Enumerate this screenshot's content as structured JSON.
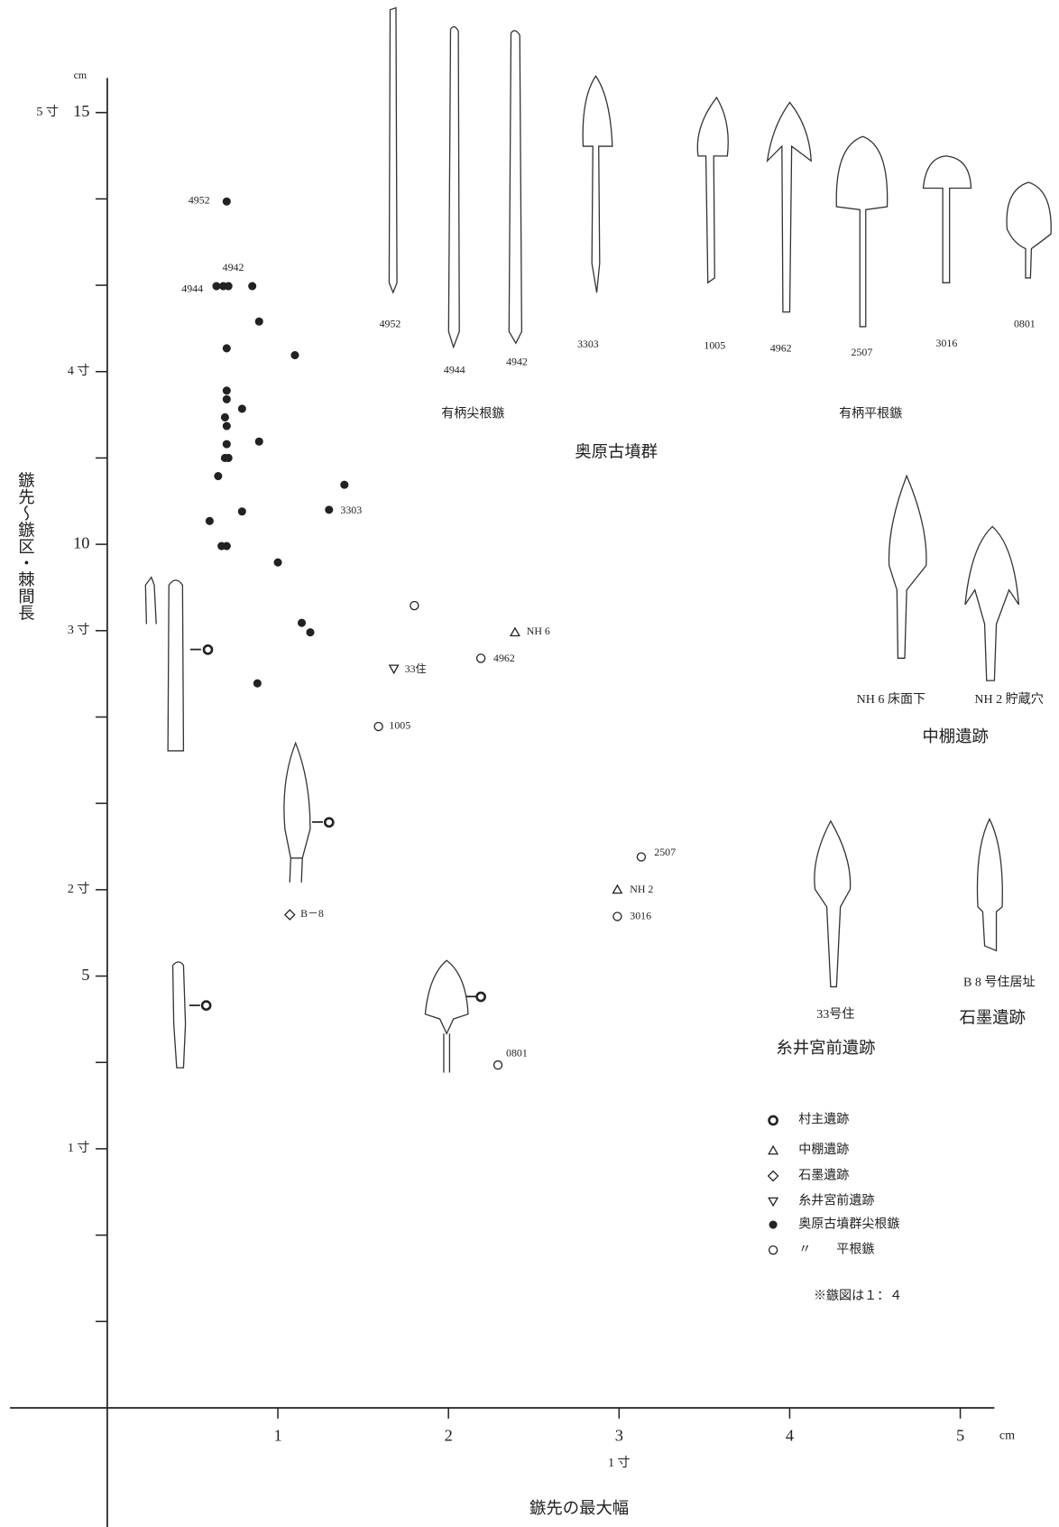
{
  "chart_data": {
    "type": "scatter",
    "x_label": "鏃先の最大幅",
    "y_label": "鏃先～鏃区・棘間長",
    "x_unit": "cm",
    "y_unit": "cm",
    "xlim": [
      -0.57,
      5.2
    ],
    "ylim": [
      -1.38,
      15.4
    ],
    "xticks": [
      1,
      2,
      3,
      4,
      5
    ],
    "x_sun_ticks": [
      {
        "value": 3,
        "label": "1 寸"
      }
    ],
    "yticks": [
      5,
      10,
      15
    ],
    "y_sun_ticks": [
      {
        "value": 3,
        "label": "1 寸"
      },
      {
        "value": 6,
        "label": "2 寸"
      },
      {
        "value": 9,
        "label": "3 寸"
      },
      {
        "value": 12,
        "label": "4 寸"
      },
      {
        "value": 15,
        "label": "5 寸"
      }
    ],
    "yminor_ticks": [
      1,
      2,
      4,
      7,
      8,
      11,
      13,
      14
    ],
    "series": [
      {
        "name": "村主遺跡",
        "marker": "circle-bold",
        "x": [
          0.59,
          1.3,
          0.58,
          2.19
        ],
        "values": [
          8.78,
          6.78,
          4.66,
          4.76
        ]
      },
      {
        "name": "中棚遺跡",
        "marker": "triangle",
        "x": [
          2.39,
          2.99
        ],
        "values": [
          8.98,
          6.0
        ],
        "point_labels": [
          "NH 6",
          "NH 2"
        ]
      },
      {
        "name": "石墨遺跡",
        "marker": "diamond",
        "x": [
          1.07
        ],
        "values": [
          5.71
        ],
        "point_labels": [
          "B－8"
        ]
      },
      {
        "name": "糸井宮前遺跡",
        "marker": "triangle-down",
        "x": [
          1.68
        ],
        "values": [
          8.56
        ],
        "point_labels": [
          "33住"
        ]
      },
      {
        "name": "奥原古墳群尖根鏃",
        "marker": "dot",
        "x": [
          0.7,
          0.64,
          0.68,
          0.71,
          0.85,
          0.89,
          0.7,
          1.1,
          0.7,
          0.7,
          0.79,
          0.69,
          0.7,
          0.89,
          0.7,
          0.69,
          0.71,
          0.65,
          1.39,
          1.3,
          0.79,
          0.6,
          0.67,
          0.7,
          1.0,
          1.14,
          1.19,
          0.88
        ],
        "values": [
          13.97,
          12.99,
          12.99,
          12.99,
          12.99,
          12.58,
          12.27,
          12.19,
          11.78,
          11.68,
          11.57,
          11.47,
          11.37,
          11.19,
          11.16,
          11.0,
          11.0,
          10.79,
          10.69,
          10.4,
          10.38,
          10.27,
          9.98,
          9.98,
          9.79,
          9.09,
          8.98,
          8.39
        ],
        "point_labels": [
          "4952",
          "4944",
          null,
          "4942",
          null,
          null,
          null,
          null,
          null,
          null,
          null,
          null,
          null,
          null,
          null,
          null,
          null,
          null,
          null,
          "3303",
          null,
          null,
          null,
          null,
          null,
          null,
          null,
          null
        ]
      },
      {
        "name": "〃　　平根鏃",
        "marker": "circle",
        "x": [
          1.8,
          2.19,
          1.59,
          3.13,
          2.99,
          2.29
        ],
        "values": [
          9.29,
          8.68,
          7.89,
          6.38,
          5.69,
          3.97
        ],
        "point_labels": [
          null,
          "4962",
          "1005",
          "2507",
          "3016",
          "0801"
        ]
      }
    ],
    "annotations": [
      "有柄尖根鏃",
      "有柄平根鏃",
      "奥原古墳群",
      "4952",
      "4944",
      "4942",
      "3303",
      "1005",
      "4962",
      "2507",
      "3016",
      "0801",
      "NH 6 床面下",
      "NH 2 貯蔵穴",
      "中棚遺跡",
      "33号住",
      "糸井宮前遺跡",
      "B 8 号住居址",
      "石墨遺跡"
    ],
    "note": "※鏃図は１：４"
  }
}
